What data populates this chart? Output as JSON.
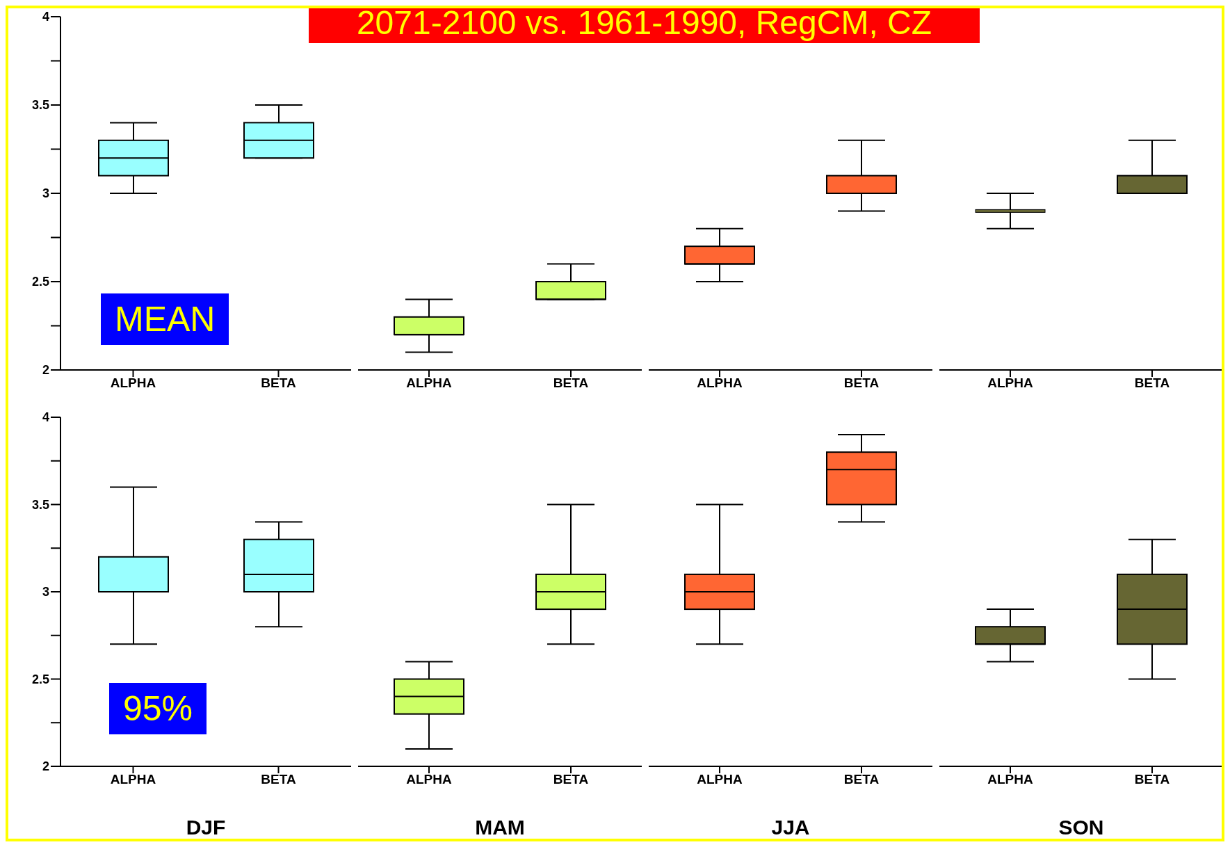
{
  "chart_data": [
    {
      "type": "box",
      "title": "2071-2100 vs. 1961-1990, RegCM, CZ",
      "annotations": [
        "MEAN"
      ],
      "categories": [
        "ALPHA",
        "BETA"
      ],
      "color": "#99ffff",
      "boxes": [
        {
          "low": 3.0,
          "q1": 3.1,
          "median": 3.2,
          "q3": 3.3,
          "high": 3.4
        },
        {
          "low": 3.2,
          "q1": 3.2,
          "median": 3.3,
          "q3": 3.4,
          "high": 3.5
        }
      ],
      "ylim": [
        2,
        4
      ],
      "yticks": [
        2,
        {
          "value": 2.25,
          "label": null
        },
        2.5,
        {
          "value": 2.75,
          "label": null
        },
        3,
        {
          "value": 3.25,
          "label": null
        },
        3.5,
        {
          "value": 3.75,
          "label": null
        },
        4
      ]
    },
    {
      "type": "box",
      "categories": [
        "ALPHA",
        "BETA"
      ],
      "color": "#ccff66",
      "boxes": [
        {
          "low": 2.1,
          "q1": 2.2,
          "median": 2.2,
          "q3": 2.3,
          "high": 2.4
        },
        {
          "low": 2.4,
          "q1": 2.4,
          "median": 2.4,
          "q3": 2.5,
          "high": 2.6
        }
      ],
      "ylim": [
        2,
        4
      ],
      "tick_labels": "x"
    },
    {
      "type": "box",
      "categories": [
        "ALPHA",
        "BETA"
      ],
      "color": "#ff6633",
      "boxes": [
        {
          "low": 2.5,
          "q1": 2.6,
          "median": 2.6,
          "q3": 2.7,
          "high": 2.8
        },
        {
          "low": 2.9,
          "q1": 3.0,
          "median": 3.0,
          "q3": 3.1,
          "high": 3.3
        }
      ],
      "ylim": [
        2,
        4
      ],
      "tick_labels": "x"
    },
    {
      "type": "box",
      "categories": [
        "ALPHA",
        "BETA"
      ],
      "color": "#666633",
      "boxes": [
        {
          "low": 2.8,
          "q1": 2.9,
          "median": 2.9,
          "q3": 2.9,
          "high": 3.0
        },
        {
          "low": 3.0,
          "q1": 3.0,
          "median": 3.0,
          "q3": 3.1,
          "high": 3.3
        }
      ],
      "ylim": [
        2,
        4
      ],
      "tick_labels": "x"
    },
    {
      "type": "box",
      "annotations": [
        "95%"
      ],
      "xlabel": "DJF",
      "categories": [
        "ALPHA",
        "BETA"
      ],
      "color": "#99ffff",
      "boxes": [
        {
          "low": 2.7,
          "q1": 3.0,
          "median": 3.0,
          "q3": 3.2,
          "high": 3.6
        },
        {
          "low": 2.8,
          "q1": 3.0,
          "median": 3.1,
          "q3": 3.3,
          "high": 3.4
        }
      ],
      "ylim": [
        2,
        4
      ],
      "yticks": [
        2,
        {
          "value": 2.25,
          "label": null
        },
        2.5,
        {
          "value": 2.75,
          "label": null
        },
        3,
        {
          "value": 3.25,
          "label": null
        },
        3.5,
        {
          "value": 3.75,
          "label": null
        },
        4
      ]
    },
    {
      "type": "box",
      "xlabel": "MAM",
      "categories": [
        "ALPHA",
        "BETA"
      ],
      "color": "#ccff66",
      "boxes": [
        {
          "low": 2.1,
          "q1": 2.3,
          "median": 2.4,
          "q3": 2.5,
          "high": 2.6
        },
        {
          "low": 2.7,
          "q1": 2.9,
          "median": 3.0,
          "q3": 3.1,
          "high": 3.5
        }
      ],
      "ylim": [
        2,
        4
      ],
      "tick_labels": "x"
    },
    {
      "type": "box",
      "xlabel": "JJA",
      "categories": [
        "ALPHA",
        "BETA"
      ],
      "color": "#ff6633",
      "boxes": [
        {
          "low": 2.7,
          "q1": 2.9,
          "median": 3.0,
          "q3": 3.1,
          "high": 3.5
        },
        {
          "low": 3.4,
          "q1": 3.5,
          "median": 3.7,
          "q3": 3.8,
          "high": 3.9
        }
      ],
      "ylim": [
        2,
        4
      ],
      "tick_labels": "x"
    },
    {
      "type": "box",
      "xlabel": "SON",
      "categories": [
        "ALPHA",
        "BETA"
      ],
      "color": "#666633",
      "boxes": [
        {
          "low": 2.6,
          "q1": 2.7,
          "median": 2.7,
          "q3": 2.8,
          "high": 2.9
        },
        {
          "low": 2.5,
          "q1": 2.7,
          "median": 2.9,
          "q3": 3.1,
          "high": 3.3
        }
      ],
      "ylim": [
        2,
        4
      ],
      "tick_labels": "x"
    }
  ]
}
